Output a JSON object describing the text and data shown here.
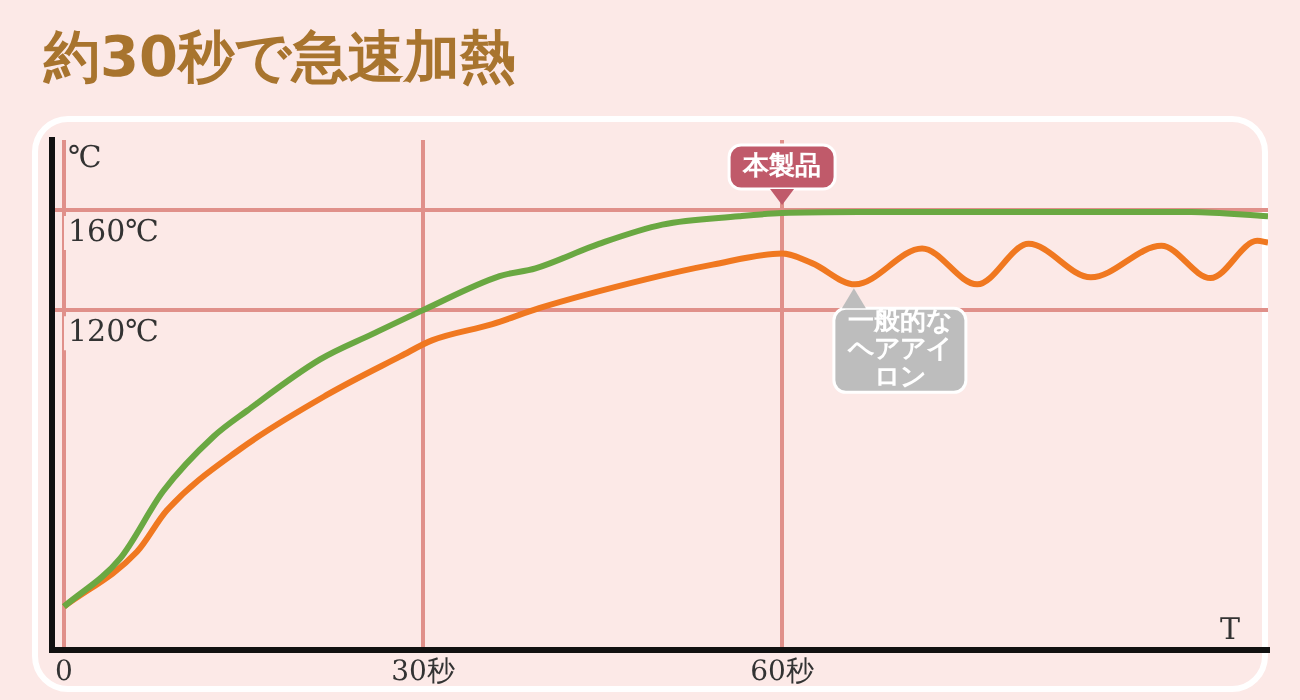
{
  "chart_data": {
    "type": "line",
    "title": "約30秒で急速加熱",
    "xlabel": "T",
    "ylabel": "℃",
    "xlim": [
      -1,
      100.6
    ],
    "ylim": [
      -16,
      188
    ],
    "xticks": [
      0,
      {
        "value": 30,
        "label": "30秒"
      },
      {
        "value": 60,
        "label": "60秒"
      }
    ],
    "yticks": [
      {
        "value": 120,
        "label": "120℃"
      },
      {
        "value": 160,
        "label": "160℃"
      }
    ],
    "grid": true,
    "legend": false,
    "marker": "none",
    "line_style": "solid",
    "series": [
      {
        "name": "本製品",
        "color": "#6aa842",
        "x": [
          0,
          4.7,
          8.3,
          12.5,
          15.3,
          21.4,
          25.8,
          30,
          36.4,
          39.4,
          44.7,
          50,
          56.4,
          60,
          66.4,
          83.1,
          94.2,
          100.6
        ],
        "values": [
          1.5,
          20.8,
          47.7,
          69.5,
          79.8,
          100.3,
          110.5,
          120,
          133.6,
          136.7,
          146.5,
          154.2,
          157.5,
          158.8,
          159.2,
          159.2,
          159.2,
          157.5
        ]
      },
      {
        "name": "一般的なヘアアイロン",
        "color": "#f07820",
        "x": [
          0,
          6.1,
          8.6,
          14.7,
          22,
          28.1,
          30.8,
          35.8,
          39.7,
          48.6,
          54.2,
          60,
          62.5,
          66.1,
          71.7,
          76.3,
          80.6,
          85.8,
          91.7,
          95.8,
          99.7,
          100.6
        ],
        "values": [
          1.5,
          23.4,
          40,
          64.4,
          86.2,
          101.5,
          108,
          114.4,
          120.8,
          132.3,
          138.2,
          142.6,
          138.8,
          130.3,
          144.6,
          130.3,
          146.5,
          133.1,
          145.7,
          132.8,
          147.7,
          147
        ]
      }
    ]
  }
}
